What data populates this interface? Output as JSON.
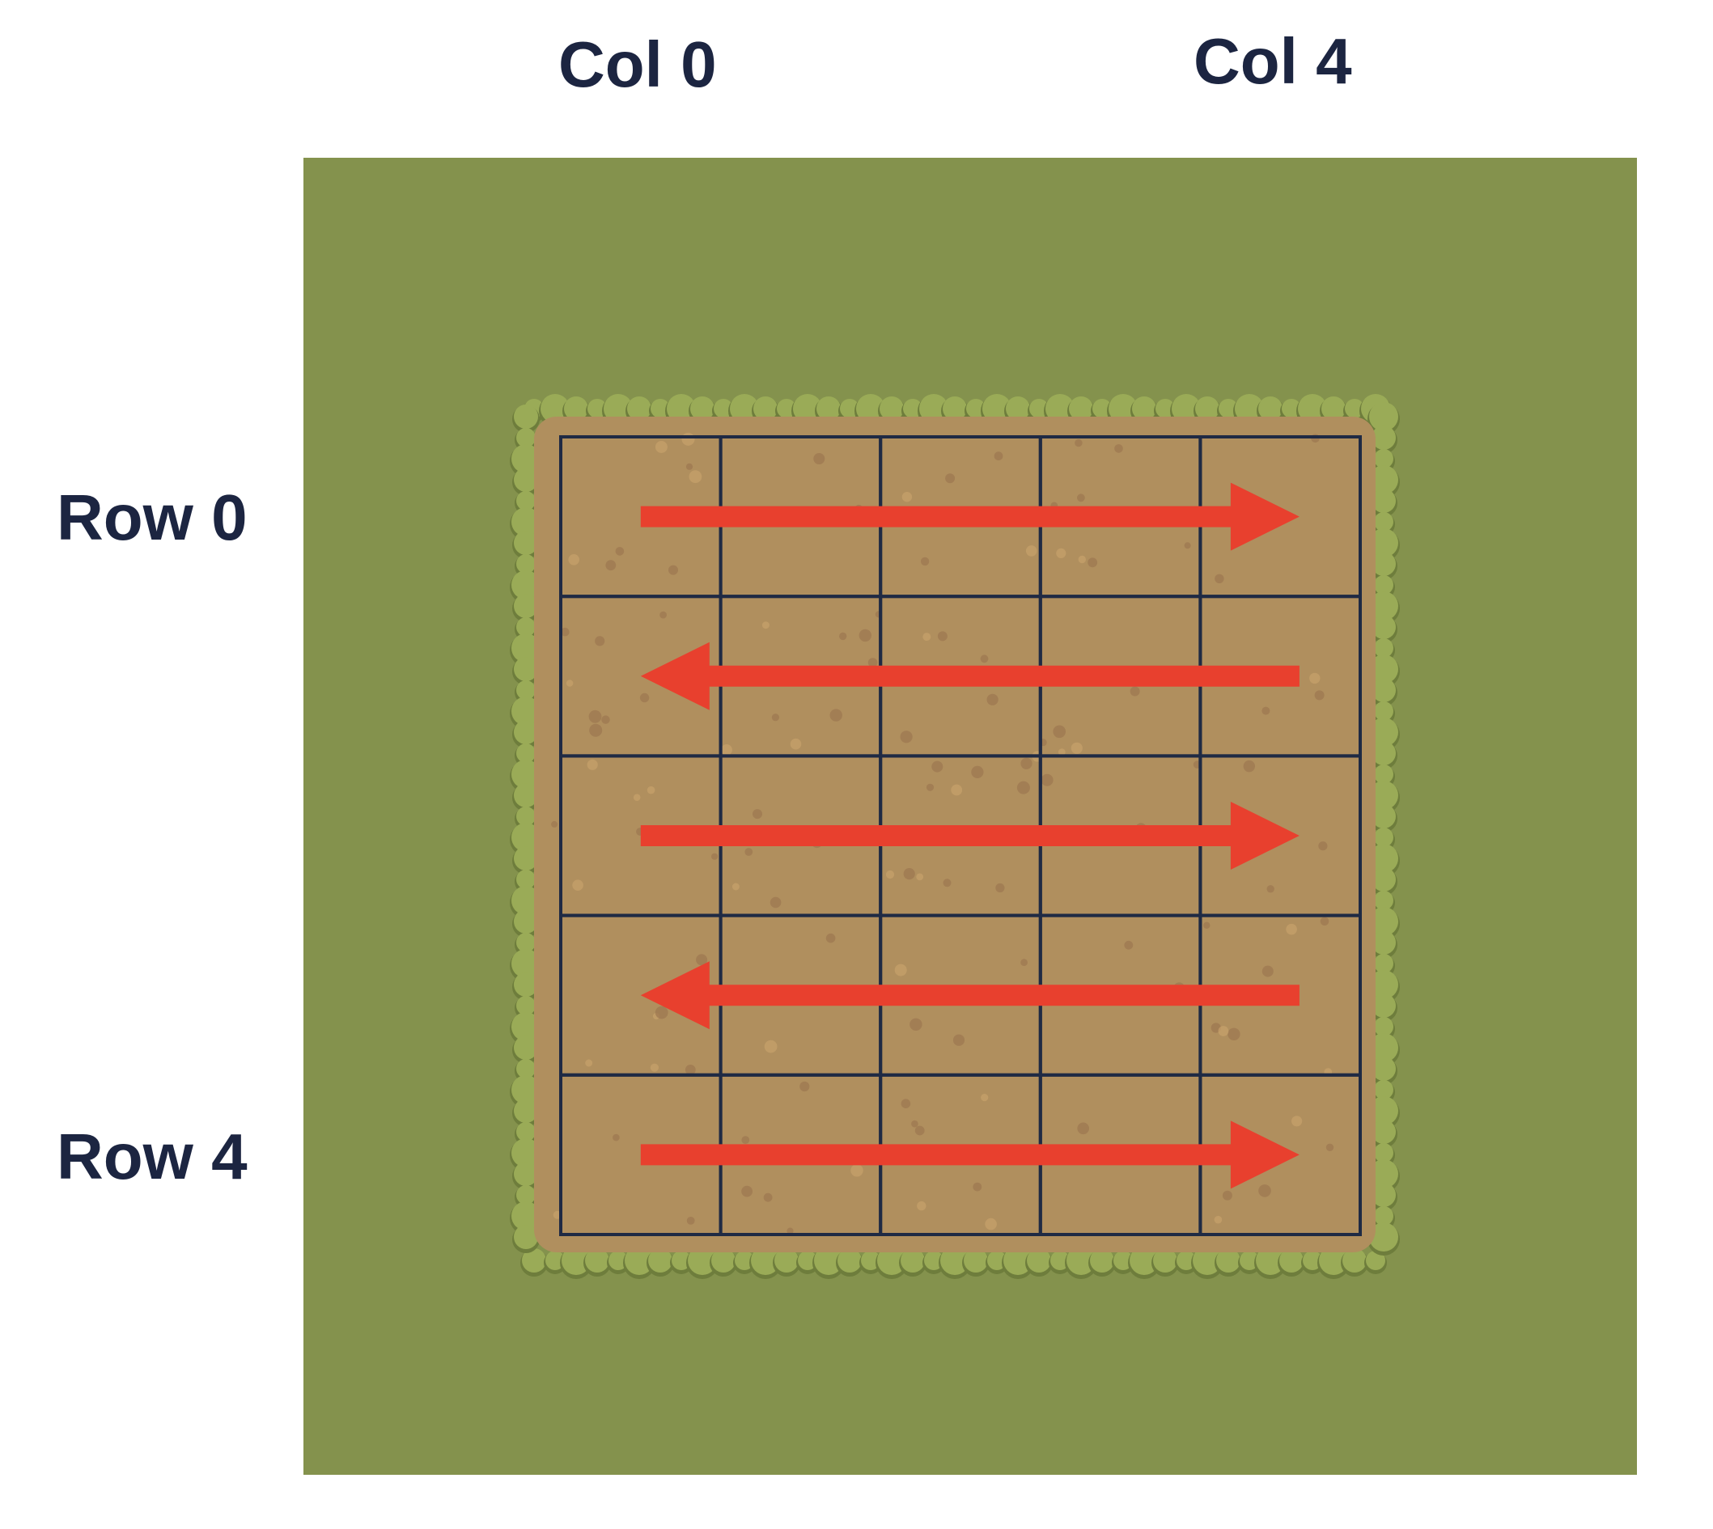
{
  "labels": {
    "col_first": "Col 0",
    "col_last": "Col 4",
    "row_first": "Row 0",
    "row_last": "Row 4"
  },
  "grid": {
    "rows": 5,
    "cols": 5,
    "traversal": "serpentine",
    "row_directions": [
      "right",
      "left",
      "right",
      "left",
      "right"
    ]
  },
  "colors": {
    "label_text": "#1c2541",
    "grass": "#84924d",
    "grass_tuft": "#9aab57",
    "grass_shadow": "#6e7d3c",
    "dirt": "#b08f5e",
    "dirt_speck_dark": "#9c7650",
    "dirt_speck_light": "#c7a16b",
    "grid_line": "#1f2a44",
    "arrow": "#e8402e"
  },
  "icons": {
    "arrow": "arrow-icon"
  }
}
